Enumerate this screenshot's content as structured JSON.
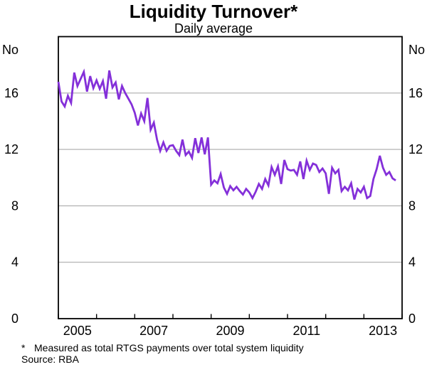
{
  "title": "Liquidity Turnover*",
  "subtitle": "Daily average",
  "footnote_marker": "*",
  "footnote_text": "Measured as total RTGS payments over total system liquidity",
  "source": "Source: RBA",
  "axes": {
    "unit_label_left": "No",
    "unit_label_right": "No",
    "y_ticks": [
      0,
      4,
      8,
      12,
      16
    ],
    "y_max": 20,
    "x_year_labels": [
      "2005",
      "2007",
      "2009",
      "2011",
      "2013"
    ],
    "x_span_years": 9,
    "x_start": "2005-01",
    "x_end": "2013-11"
  },
  "colors": {
    "line": "#8430D9",
    "grid": "#ababab",
    "frame": "#000000"
  },
  "chart_data": {
    "type": "line",
    "title": "Liquidity Turnover*",
    "subtitle": "Daily average",
    "ylabel": "No",
    "ylim": [
      0,
      20
    ],
    "yticks": [
      0,
      4,
      8,
      12,
      16
    ],
    "grid": "horizontal",
    "legend": "none",
    "x_frequency": "monthly",
    "x_start": "2005-01",
    "x_tick_years": [
      2005,
      2006,
      2007,
      2008,
      2009,
      2010,
      2011,
      2012,
      2013,
      2014
    ],
    "x_tick_labels": [
      "2005",
      "2007",
      "2009",
      "2011",
      "2013"
    ],
    "series": [
      {
        "name": "Liquidity turnover (number, daily average)",
        "color": "#8430D9",
        "values": [
          16.8,
          15.4,
          15.05,
          15.8,
          15.3,
          17.45,
          16.5,
          17.0,
          17.5,
          16.1,
          17.2,
          16.35,
          16.9,
          16.3,
          16.85,
          15.6,
          17.6,
          16.4,
          16.75,
          15.55,
          16.5,
          16.0,
          15.6,
          15.2,
          14.6,
          13.7,
          14.55,
          14.0,
          15.65,
          13.4,
          13.9,
          12.7,
          11.9,
          12.5,
          11.9,
          12.25,
          12.3,
          11.9,
          11.6,
          12.7,
          11.6,
          11.85,
          11.4,
          12.8,
          11.75,
          12.85,
          11.65,
          12.85,
          9.5,
          9.8,
          9.6,
          10.25,
          9.3,
          8.85,
          9.4,
          9.1,
          9.35,
          9.05,
          8.8,
          9.2,
          8.95,
          8.55,
          9.0,
          9.55,
          9.2,
          9.9,
          9.45,
          10.75,
          10.2,
          10.8,
          9.55,
          11.25,
          10.6,
          10.5,
          10.55,
          10.2,
          11.15,
          9.9,
          11.2,
          10.55,
          11.0,
          10.9,
          10.4,
          10.65,
          10.3,
          8.85,
          10.7,
          10.3,
          10.55,
          9.05,
          9.35,
          9.1,
          9.6,
          8.45,
          9.2,
          8.95,
          9.35,
          8.55,
          8.7,
          9.9,
          10.6,
          11.55,
          10.7,
          10.2,
          10.4,
          9.95,
          9.8
        ]
      }
    ]
  }
}
